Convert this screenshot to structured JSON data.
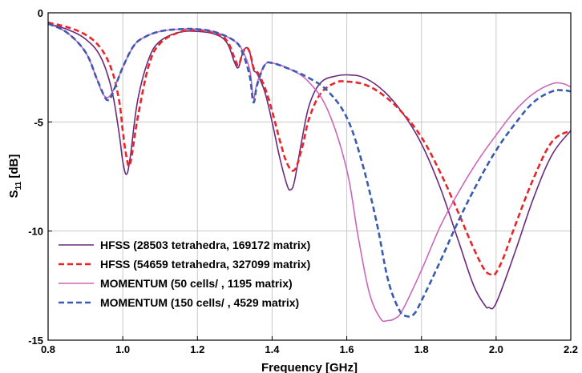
{
  "chart_data": {
    "type": "line",
    "xlabel": "Frequency [GHz]",
    "ylabel_main": "S",
    "ylabel_sub": "11",
    "ylabel_unit": " [dB]",
    "xlim": [
      0.8,
      2.2
    ],
    "ylim": [
      -15,
      0
    ],
    "xticks": [
      0.8,
      1.0,
      1.2,
      1.4,
      1.6,
      1.8,
      2.0,
      2.2
    ],
    "xtick_labels": [
      "0.8",
      "1.0",
      "1.2",
      "1.4",
      "1.6",
      "1.8",
      "2.0",
      "2.2"
    ],
    "yticks": [
      0,
      -5,
      -10,
      -15
    ],
    "ytick_labels": [
      "0",
      "-5",
      "-10",
      "-15"
    ],
    "grid": true,
    "legend_position": "bottom-left",
    "series": [
      {
        "name": "HFSS (28503 tetrahedra, 169172 matrix)",
        "color": "#6a2a7a",
        "dash": "solid",
        "x": [
          0.8,
          0.85,
          0.9,
          0.94,
          0.97,
          0.99,
          1.0,
          1.01,
          1.02,
          1.04,
          1.07,
          1.1,
          1.15,
          1.2,
          1.25,
          1.28,
          1.3,
          1.31,
          1.32,
          1.33,
          1.34,
          1.35,
          1.36,
          1.38,
          1.4,
          1.42,
          1.44,
          1.45,
          1.46,
          1.48,
          1.5,
          1.53,
          1.57,
          1.61,
          1.65,
          1.7,
          1.75,
          1.8,
          1.85,
          1.9,
          1.94,
          1.97,
          1.98,
          2.0,
          2.05,
          2.1,
          2.15,
          2.2
        ],
        "y": [
          -0.5,
          -0.75,
          -1.2,
          -2.0,
          -3.5,
          -5.5,
          -6.8,
          -7.4,
          -6.6,
          -4.0,
          -2.1,
          -1.3,
          -0.9,
          -0.85,
          -1.0,
          -1.4,
          -2.3,
          -2.5,
          -1.9,
          -1.6,
          -1.8,
          -2.6,
          -2.8,
          -3.6,
          -5.0,
          -6.6,
          -7.9,
          -8.1,
          -7.7,
          -5.8,
          -4.2,
          -3.2,
          -2.9,
          -2.85,
          -3.0,
          -3.6,
          -4.6,
          -6.0,
          -8.0,
          -10.5,
          -12.5,
          -13.4,
          -13.5,
          -13.3,
          -11.0,
          -8.5,
          -6.5,
          -5.4
        ]
      },
      {
        "name": "HFSS (54659 tetrahedra, 327099 matrix)",
        "color": "#e8262a",
        "dash": "7,4",
        "x": [
          0.8,
          0.85,
          0.9,
          0.94,
          0.97,
          0.99,
          1.0,
          1.01,
          1.02,
          1.04,
          1.07,
          1.1,
          1.15,
          1.2,
          1.25,
          1.28,
          1.3,
          1.31,
          1.32,
          1.33,
          1.34,
          1.35,
          1.36,
          1.38,
          1.4,
          1.42,
          1.44,
          1.46,
          1.48,
          1.5,
          1.53,
          1.57,
          1.6,
          1.65,
          1.7,
          1.75,
          1.8,
          1.85,
          1.9,
          1.94,
          1.97,
          1.99,
          2.0,
          2.02,
          2.05,
          2.1,
          2.15,
          2.2
        ],
        "y": [
          -0.45,
          -0.65,
          -1.0,
          -1.6,
          -2.6,
          -4.0,
          -5.4,
          -6.6,
          -6.9,
          -4.8,
          -2.4,
          -1.4,
          -0.9,
          -0.8,
          -0.95,
          -1.3,
          -2.1,
          -2.4,
          -1.9,
          -1.6,
          -1.8,
          -2.5,
          -2.7,
          -3.4,
          -4.5,
          -5.8,
          -6.9,
          -7.2,
          -6.2,
          -4.8,
          -3.7,
          -3.2,
          -3.15,
          -3.3,
          -3.8,
          -4.6,
          -5.7,
          -7.3,
          -9.2,
          -10.8,
          -11.8,
          -12.0,
          -11.9,
          -11.2,
          -9.8,
          -7.6,
          -5.9,
          -5.4
        ]
      },
      {
        "name": "MOMENTUM (50 cells/  , 1195 matrix)",
        "color": "#cc66bb",
        "dash": "solid",
        "x": [
          0.8,
          0.85,
          0.9,
          0.93,
          0.95,
          0.97,
          1.0,
          1.03,
          1.06,
          1.1,
          1.15,
          1.2,
          1.25,
          1.3,
          1.32,
          1.34,
          1.35,
          1.36,
          1.38,
          1.4,
          1.45,
          1.5,
          1.55,
          1.6,
          1.63,
          1.66,
          1.69,
          1.71,
          1.73,
          1.75,
          1.8,
          1.85,
          1.9,
          1.95,
          2.0,
          2.05,
          2.1,
          2.15,
          2.18,
          2.2
        ],
        "y": [
          -0.5,
          -0.9,
          -1.8,
          -3.0,
          -3.8,
          -3.7,
          -2.5,
          -1.5,
          -1.1,
          -0.85,
          -0.75,
          -0.75,
          -0.9,
          -1.3,
          -1.7,
          -2.6,
          -3.9,
          -3.2,
          -2.4,
          -2.3,
          -2.6,
          -3.2,
          -4.5,
          -7.2,
          -10.2,
          -12.8,
          -14.0,
          -14.1,
          -14.0,
          -13.6,
          -11.8,
          -9.8,
          -8.2,
          -6.8,
          -5.6,
          -4.5,
          -3.7,
          -3.25,
          -3.25,
          -3.4
        ]
      },
      {
        "name": "MOMENTUM (150 cells/  , 4529 matrix)",
        "color": "#3a5bb0",
        "dash": "7,4",
        "x": [
          0.8,
          0.85,
          0.9,
          0.93,
          0.95,
          0.96,
          0.97,
          1.0,
          1.03,
          1.06,
          1.1,
          1.15,
          1.2,
          1.25,
          1.3,
          1.32,
          1.34,
          1.35,
          1.36,
          1.38,
          1.4,
          1.45,
          1.5,
          1.55,
          1.6,
          1.64,
          1.68,
          1.71,
          1.74,
          1.76,
          1.78,
          1.8,
          1.85,
          1.9,
          1.95,
          2.0,
          2.05,
          2.1,
          2.15,
          2.18,
          2.2
        ],
        "y": [
          -0.5,
          -0.9,
          -1.8,
          -3.0,
          -3.8,
          -4.0,
          -3.8,
          -2.5,
          -1.5,
          -1.1,
          -0.85,
          -0.75,
          -0.75,
          -0.9,
          -1.3,
          -1.8,
          -2.9,
          -4.1,
          -3.3,
          -2.4,
          -2.3,
          -2.6,
          -3.0,
          -3.6,
          -4.8,
          -6.8,
          -9.6,
          -12.2,
          -13.6,
          -13.9,
          -13.8,
          -13.2,
          -11.4,
          -9.5,
          -7.8,
          -6.3,
          -5.1,
          -4.1,
          -3.6,
          -3.55,
          -3.6
        ]
      }
    ]
  }
}
